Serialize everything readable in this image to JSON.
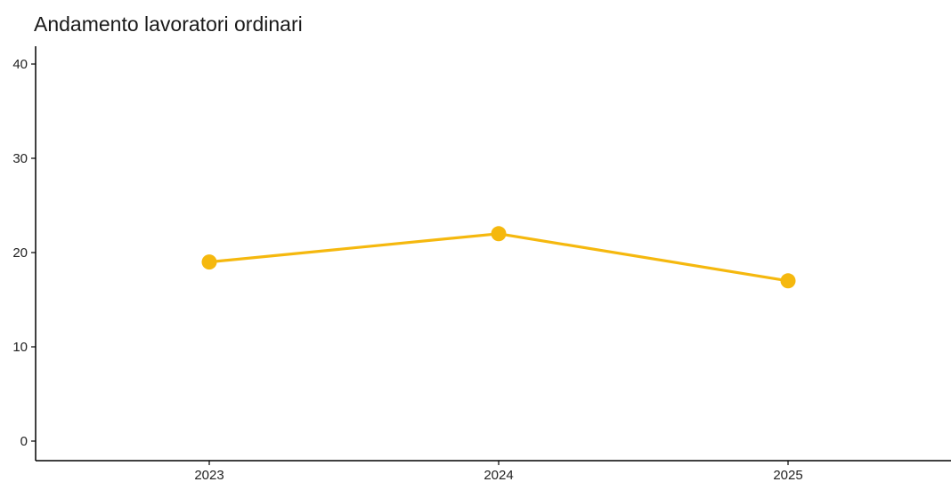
{
  "chart_data": {
    "type": "line",
    "title": "Andamento lavoratori ordinari",
    "xlabel": "",
    "ylabel": "",
    "categories": [
      "2023",
      "2024",
      "2025"
    ],
    "series": [
      {
        "values": [
          19,
          22,
          17
        ],
        "color": "#F5B80E"
      }
    ],
    "ylim": [
      0,
      40
    ],
    "yticks": [
      0,
      10,
      20,
      30,
      40
    ],
    "grid": false,
    "legend": "none"
  }
}
